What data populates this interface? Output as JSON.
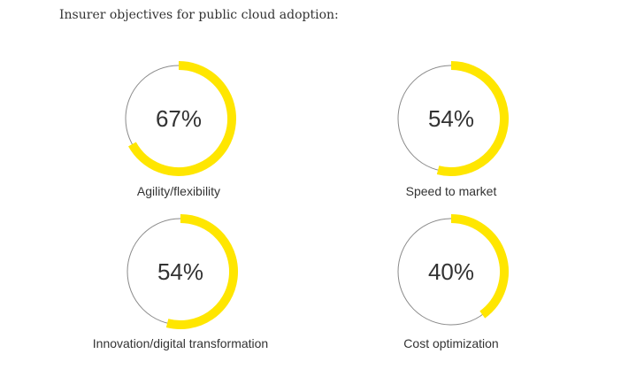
{
  "title": "Insurer objectives for public cloud adoption:",
  "colors": {
    "accent": "#FFE600",
    "track": "#8a8a8a",
    "text": "#333333"
  },
  "chart_data": {
    "type": "donut",
    "title": "Insurer objectives for public cloud adoption:",
    "items": [
      {
        "label": "Agility/flexibility",
        "value": 67,
        "display": "67%"
      },
      {
        "label": "Speed to market",
        "value": 54,
        "display": "54%"
      },
      {
        "label": "Innovation/digital transformation",
        "value": 54,
        "display": "54%"
      },
      {
        "label": "Cost optimization",
        "value": 40,
        "display": "40%"
      }
    ]
  }
}
